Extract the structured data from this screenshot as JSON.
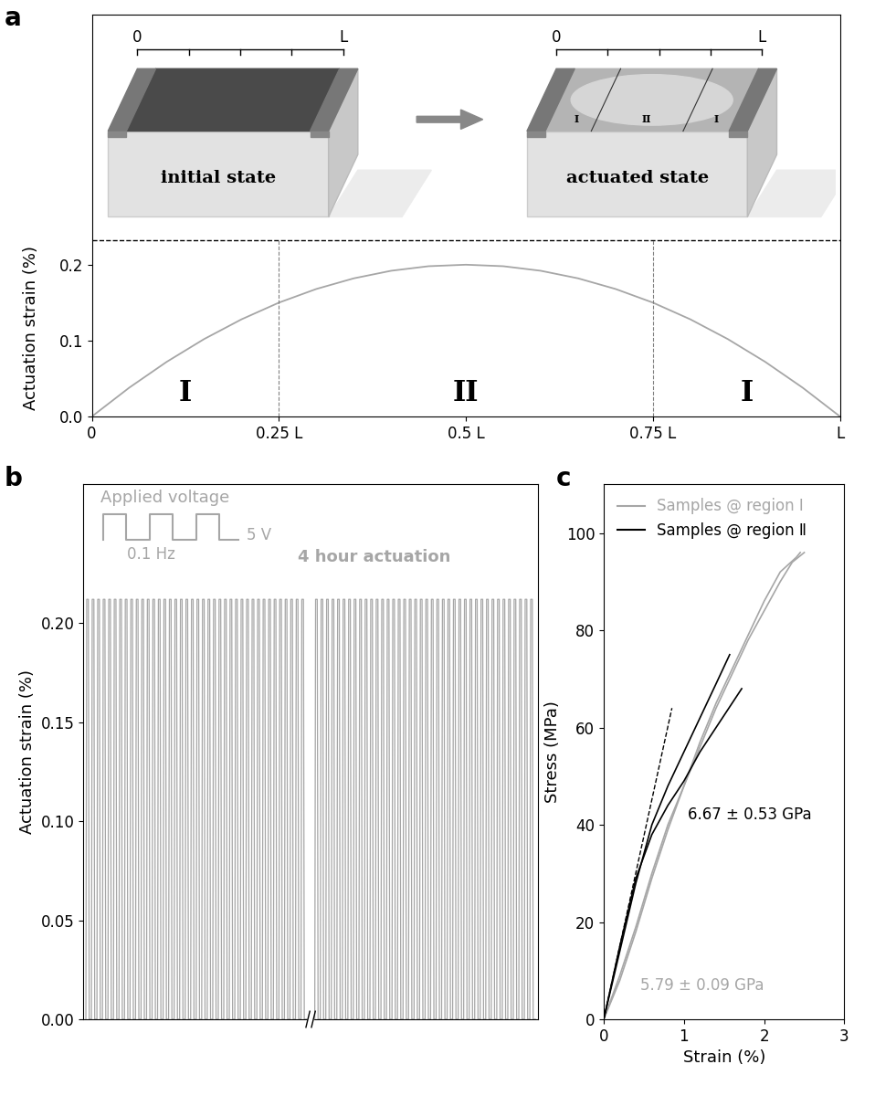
{
  "chart_data": [
    {
      "type": "line",
      "title": "a",
      "y_label": "Actuation strain (%)",
      "color": "#a6a6a6",
      "x": [
        0,
        0.05,
        0.1,
        0.15,
        0.2,
        0.25,
        0.3,
        0.35,
        0.4,
        0.45,
        0.5,
        0.55,
        0.6,
        0.65,
        0.7,
        0.75,
        0.8,
        0.85,
        0.9,
        0.95,
        1
      ],
      "values": [
        0,
        0.038,
        0.072,
        0.102,
        0.128,
        0.15,
        0.168,
        0.182,
        0.192,
        0.198,
        0.2,
        0.198,
        0.192,
        0.182,
        0.168,
        0.15,
        0.128,
        0.102,
        0.072,
        0.038,
        0
      ],
      "xlim": [
        0,
        1
      ],
      "ylim": [
        0,
        0.53
      ],
      "xticks": [
        0,
        {
          "value": 0.25,
          "label": "0.25 L"
        },
        {
          "value": 0.5,
          "label": "0.5 L"
        },
        {
          "value": 0.75,
          "label": "0.75 L"
        },
        {
          "value": 1,
          "label": "L"
        }
      ],
      "yticks": [
        {
          "value": 0,
          "label": "0.0"
        },
        0.1,
        0.2
      ],
      "reference_y": 0.232,
      "boundaries": [
        0.25,
        0.75
      ],
      "region_labels": [
        "I",
        "II",
        "I"
      ],
      "schematic": {
        "states": [
          "initial state",
          "actuated state"
        ],
        "scale_labels": [
          "0",
          "L"
        ],
        "region_labels": [
          "I",
          "II",
          "I"
        ]
      }
    },
    {
      "type": "line",
      "title": "b",
      "y_label": "Actuation strain (%)",
      "color": "#a6a6a6",
      "segments": [
        [
          0.212,
          0.212,
          0.212,
          0.212,
          0.212,
          0.212,
          0.212,
          0.212,
          0.212,
          0.212,
          0.212,
          0.212,
          0.212,
          0.212,
          0.212,
          0.212,
          0.212,
          0.212,
          0.212,
          0.212,
          0.212,
          0.212,
          0.212,
          0.212,
          0.212,
          0.212,
          0.212,
          0.212,
          0.212,
          0.212,
          0.212,
          0.212,
          0.212,
          0.212,
          0.212,
          0.212,
          0.212,
          0.212,
          0.212,
          0.212
        ],
        [
          0.212,
          0.212,
          0.212,
          0.212,
          0.212,
          0.212,
          0.212,
          0.212,
          0.212,
          0.212,
          0.212,
          0.212,
          0.212,
          0.212,
          0.212,
          0.212,
          0.212,
          0.212,
          0.212,
          0.212,
          0.212,
          0.212,
          0.212,
          0.212,
          0.212,
          0.212,
          0.212,
          0.212,
          0.212,
          0.212,
          0.212,
          0.212,
          0.212,
          0.212,
          0.212,
          0.212,
          0.212,
          0.212,
          0.212,
          0.212
        ]
      ],
      "ylim": [
        0,
        0.27
      ],
      "yticks": [
        {
          "value": 0,
          "label": "0.00"
        },
        0.05,
        {
          "value": 0.1,
          "label": "0.10"
        },
        0.15,
        {
          "value": 0.2,
          "label": "0.20"
        }
      ],
      "tick_labels": "y",
      "annotations": [
        "Applied voltage",
        "5 V",
        "0.1 Hz",
        "4 hour actuation"
      ]
    },
    {
      "type": "line",
      "title": "c",
      "x_label": "Strain (%)",
      "y_label": "Stress (MPa)",
      "xlim": [
        0,
        3
      ],
      "ylim": [
        0,
        110
      ],
      "xticks": [
        0,
        1,
        2,
        3
      ],
      "yticks": [
        0,
        20,
        40,
        60,
        80,
        100
      ],
      "legend": "upper left",
      "series": [
        {
          "name": "Samples @ region Ⅰ",
          "color": "#a6a6a6",
          "curves": [
            {
              "x": [
                0,
                0.2,
                0.4,
                0.6,
                0.8,
                1.0,
                1.2,
                1.4,
                1.6,
                1.8,
                2.0,
                2.2,
                2.35,
                2.5
              ],
              "y": [
                0,
                8,
                18,
                29,
                39,
                48,
                56,
                64,
                71,
                78,
                84,
                90,
                94,
                96
              ]
            },
            {
              "x": [
                0,
                0.2,
                0.4,
                0.6,
                0.8,
                1.0,
                1.2,
                1.4,
                1.6,
                1.8,
                2.0,
                2.2,
                2.4,
                2.45
              ],
              "y": [
                0,
                9,
                19,
                30,
                40,
                48,
                57,
                65,
                72,
                79,
                86,
                92,
                95,
                96
              ]
            }
          ]
        },
        {
          "name": "Samples @ region Ⅱ",
          "color": "#000000",
          "curves": [
            {
              "x": [
                0,
                0.2,
                0.4,
                0.6,
                0.8,
                1.0,
                1.2,
                1.4,
                1.57
              ],
              "y": [
                0,
                14,
                28,
                40,
                48,
                55,
                62,
                69,
                75
              ]
            },
            {
              "x": [
                0,
                0.2,
                0.4,
                0.6,
                0.8,
                1.0,
                1.2,
                1.4,
                1.6,
                1.72
              ],
              "y": [
                0,
                15,
                29,
                38,
                44,
                49,
                55,
                60,
                65,
                68
              ]
            }
          ]
        }
      ],
      "fit_line": {
        "x": [
          0,
          0.85
        ],
        "y": [
          0,
          64
        ],
        "line_style": "dashed",
        "color": "#000000"
      },
      "annotations": [
        {
          "text": "6.67 ± 0.53 GPa",
          "color": "#000000"
        },
        {
          "text": "5.79 ± 0.09 GPa",
          "color": "#a6a6a6"
        }
      ]
    }
  ]
}
